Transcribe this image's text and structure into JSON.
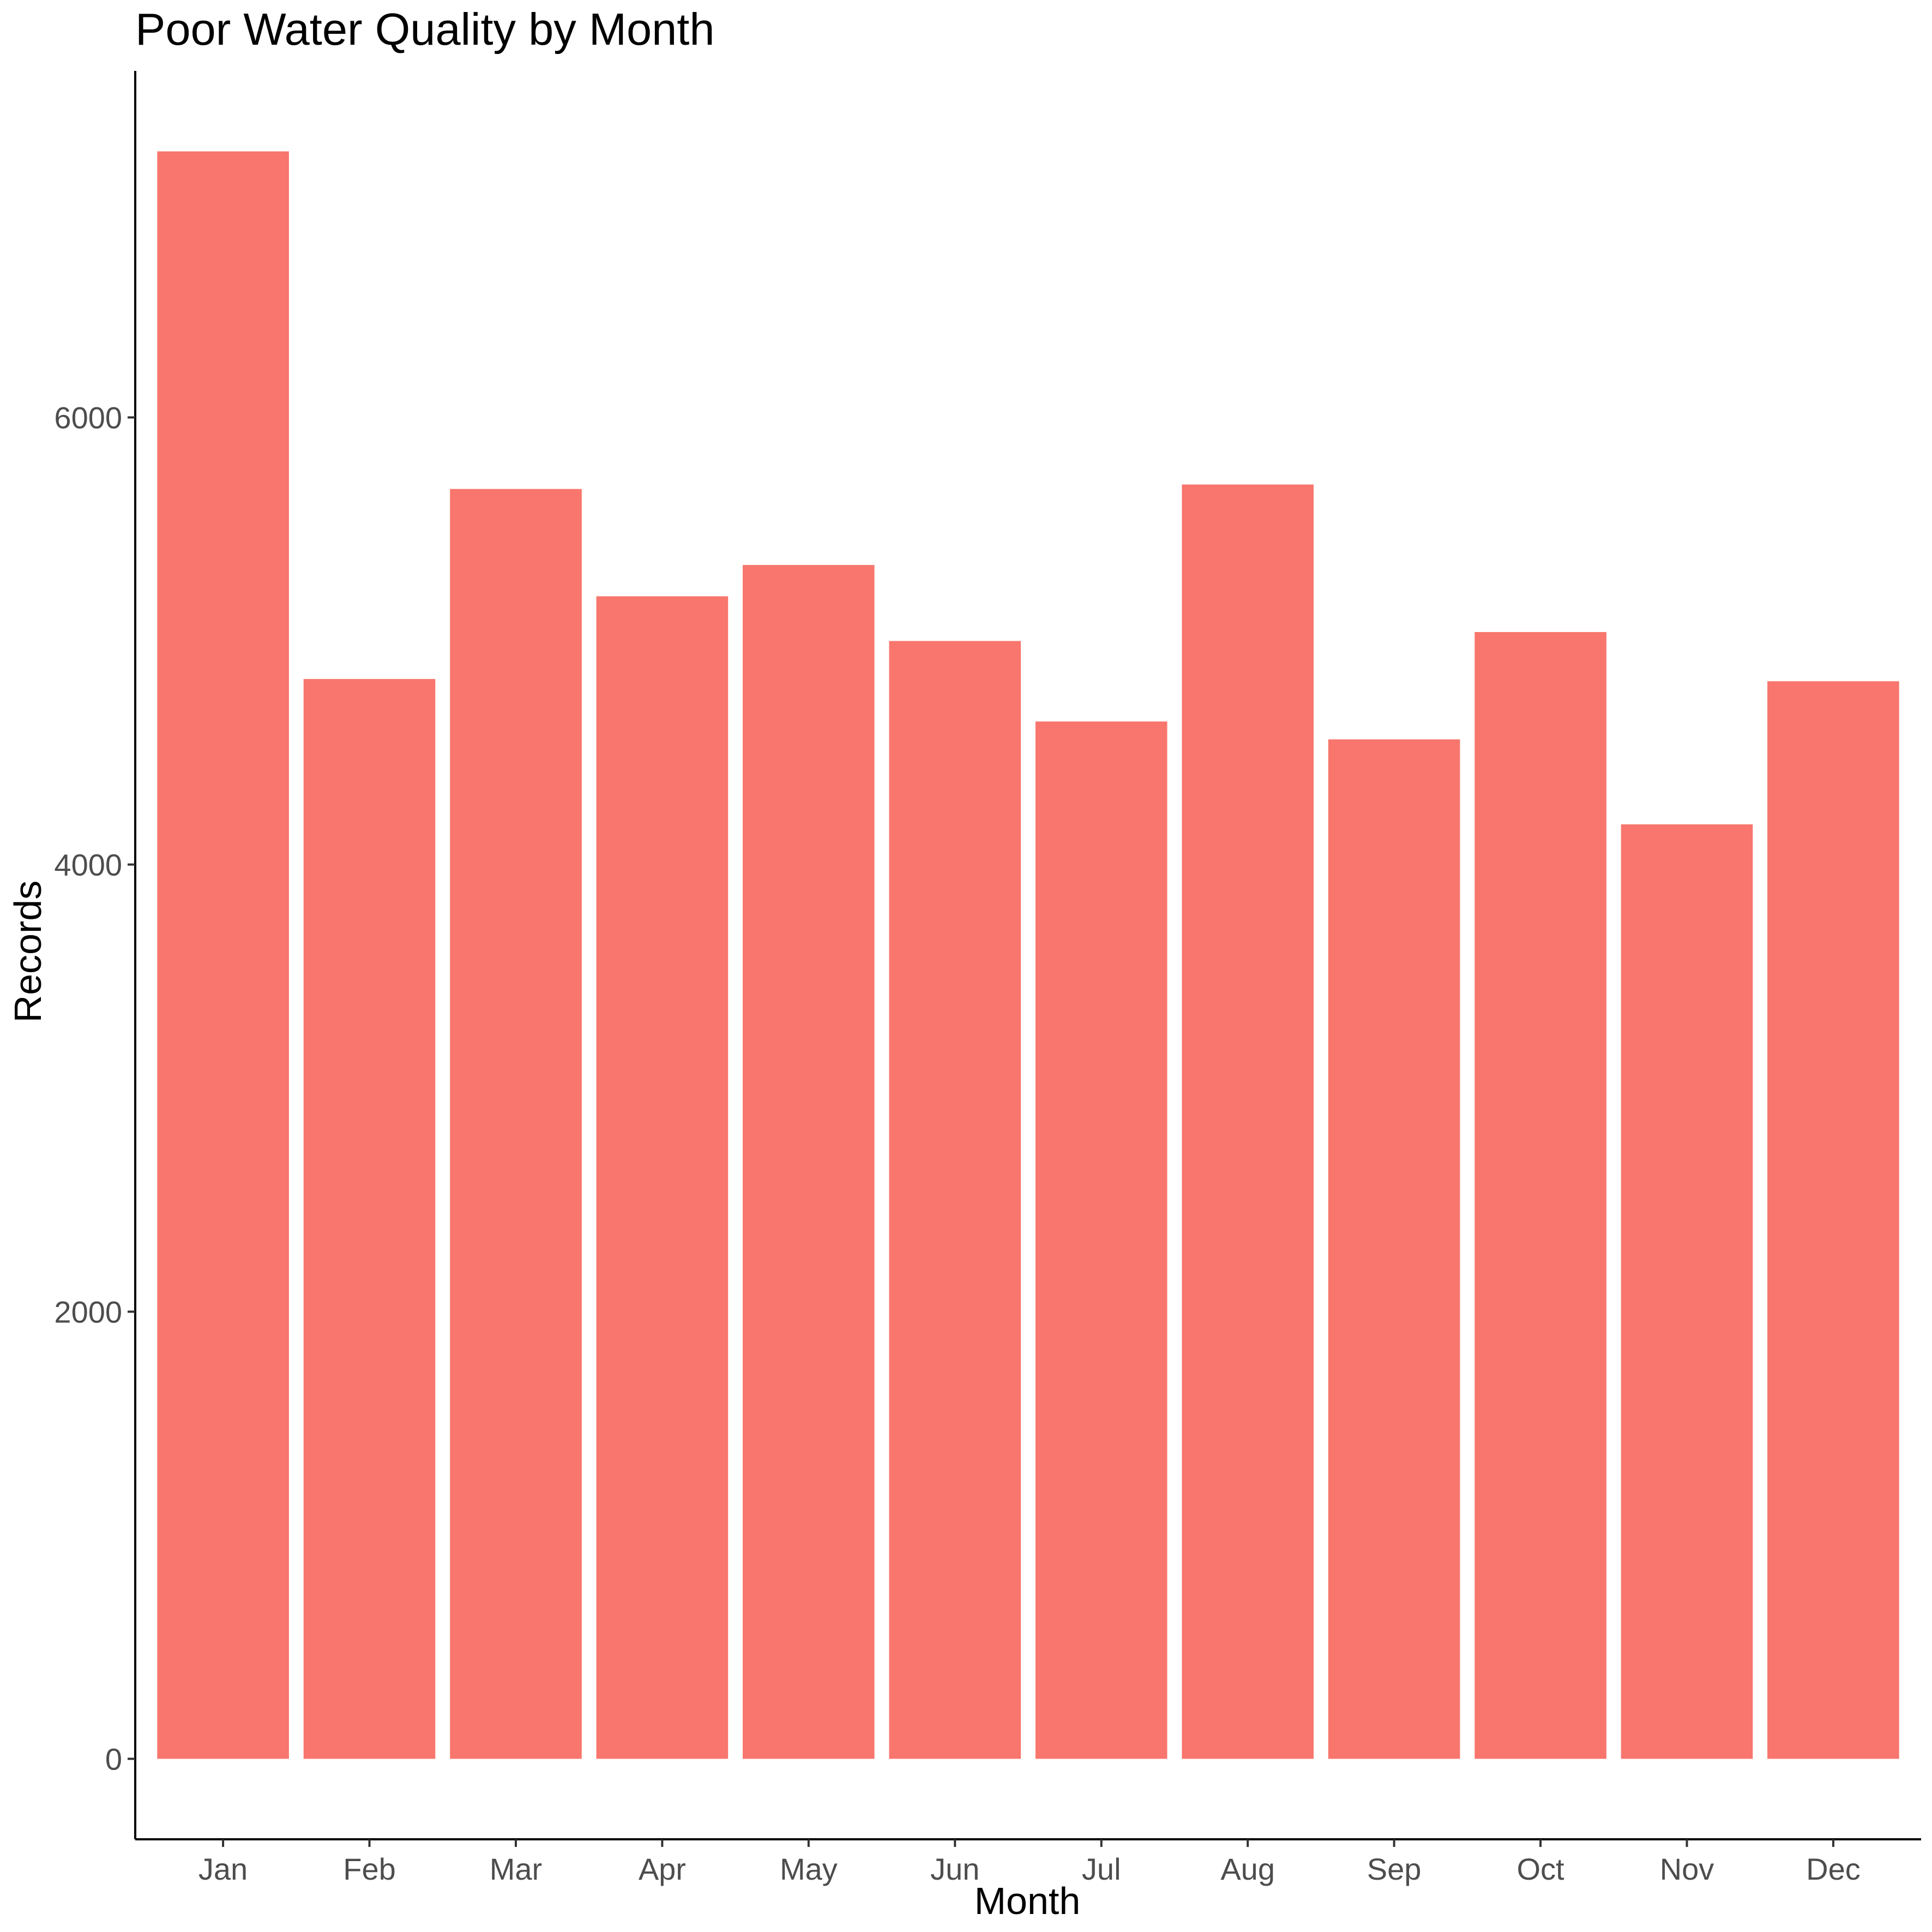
{
  "chart_data": {
    "type": "bar",
    "title": "Poor Water Quality by Month",
    "xlabel": "Month",
    "ylabel": "Records",
    "categories": [
      "Jan",
      "Feb",
      "Mar",
      "Apr",
      "May",
      "Jun",
      "Jul",
      "Aug",
      "Sep",
      "Oct",
      "Nov",
      "Dec"
    ],
    "values": [
      7190,
      4830,
      5680,
      5200,
      5340,
      5000,
      4640,
      5700,
      4560,
      5040,
      4180,
      4820
    ],
    "ylim": [
      -360,
      7550
    ],
    "yticks": [
      0,
      2000,
      4000,
      6000
    ],
    "ytick_labels": [
      "0",
      "2000",
      "4000",
      "6000"
    ],
    "grid": false,
    "legend": "none",
    "colors": {
      "bar": "#F8766D",
      "axis": "#000000",
      "tick_text": "#4d4d4d"
    }
  }
}
